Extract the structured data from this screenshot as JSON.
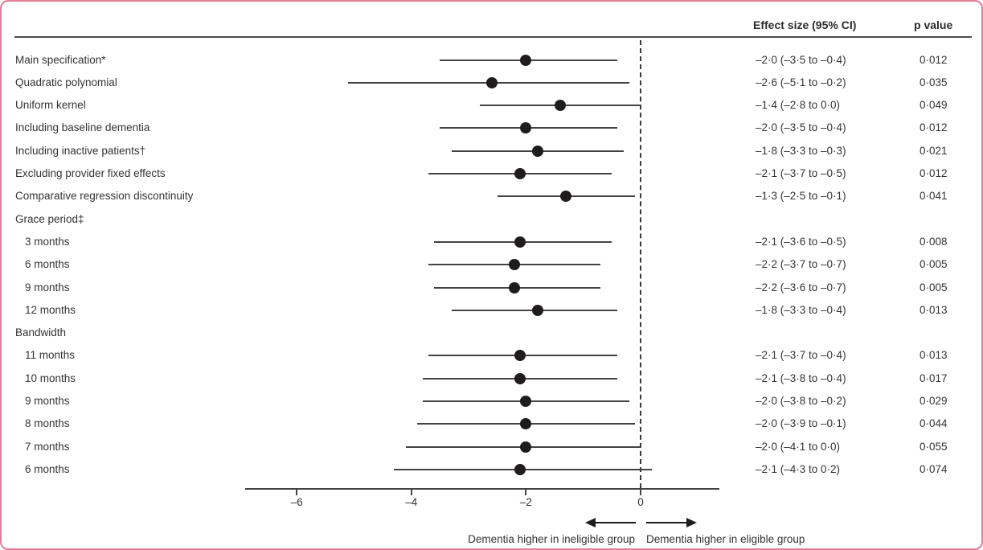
{
  "figure": {
    "border_color": "#e17d96",
    "background": "#ffffff",
    "accent_text_color": "#2d2a2b"
  },
  "columns": {
    "effect_label": "Effect size (95% CI)",
    "p_label": "p value"
  },
  "chart_data": {
    "type": "scatter",
    "subtype": "forest-plot",
    "title": "",
    "xlabel": "",
    "ylabel": "",
    "x_axis": {
      "ticks": [
        -6,
        -4,
        -2,
        0
      ],
      "tick_labels": [
        "–6",
        "–4",
        "–2",
        "0"
      ],
      "range": [
        -6.9,
        1.4
      ],
      "zero_line_dashed": true,
      "grid": false
    },
    "rows": [
      {
        "label": "Main specification*",
        "indent": 0,
        "is_header": false,
        "estimate": -2.0,
        "ci_low": -3.5,
        "ci_high": -0.4,
        "effect_text": "–2·0 (–3·5 to –0·4)",
        "p_text": "0·012"
      },
      {
        "label": "Quadratic polynomial",
        "indent": 0,
        "is_header": false,
        "estimate": -2.6,
        "ci_low": -5.1,
        "ci_high": -0.2,
        "effect_text": "–2·6 (–5·1 to –0·2)",
        "p_text": "0·035"
      },
      {
        "label": "Uniform kernel",
        "indent": 0,
        "is_header": false,
        "estimate": -1.4,
        "ci_low": -2.8,
        "ci_high": 0.0,
        "effect_text": "–1·4 (–2·8 to 0·0)",
        "p_text": "0·049"
      },
      {
        "label": "Including baseline dementia",
        "indent": 0,
        "is_header": false,
        "estimate": -2.0,
        "ci_low": -3.5,
        "ci_high": -0.4,
        "effect_text": "–2·0 (–3·5 to –0·4)",
        "p_text": "0·012"
      },
      {
        "label": "Including inactive patients†",
        "indent": 0,
        "is_header": false,
        "estimate": -1.8,
        "ci_low": -3.3,
        "ci_high": -0.3,
        "effect_text": "–1·8 (–3·3 to –0·3)",
        "p_text": "0·021"
      },
      {
        "label": "Excluding provider fixed effects",
        "indent": 0,
        "is_header": false,
        "estimate": -2.1,
        "ci_low": -3.7,
        "ci_high": -0.5,
        "effect_text": "–2·1 (–3·7 to –0·5)",
        "p_text": "0·012"
      },
      {
        "label": "Comparative regression discontinuity",
        "indent": 0,
        "is_header": false,
        "estimate": -1.3,
        "ci_low": -2.5,
        "ci_high": -0.1,
        "effect_text": "–1·3 (–2·5 to –0·1)",
        "p_text": "0·041"
      },
      {
        "label": "Grace period‡",
        "indent": 0,
        "is_header": true
      },
      {
        "label": "3 months",
        "indent": 1,
        "is_header": false,
        "estimate": -2.1,
        "ci_low": -3.6,
        "ci_high": -0.5,
        "effect_text": "–2·1 (–3·6 to –0·5)",
        "p_text": "0·008"
      },
      {
        "label": "6 months",
        "indent": 1,
        "is_header": false,
        "estimate": -2.2,
        "ci_low": -3.7,
        "ci_high": -0.7,
        "effect_text": "–2·2 (–3·7 to –0·7)",
        "p_text": "0·005"
      },
      {
        "label": "9 months",
        "indent": 1,
        "is_header": false,
        "estimate": -2.2,
        "ci_low": -3.6,
        "ci_high": -0.7,
        "effect_text": "–2·2 (–3·6 to –0·7)",
        "p_text": "0·005"
      },
      {
        "label": "12 months",
        "indent": 1,
        "is_header": false,
        "estimate": -1.8,
        "ci_low": -3.3,
        "ci_high": -0.4,
        "effect_text": "–1·8 (–3·3 to –0·4)",
        "p_text": "0·013"
      },
      {
        "label": "Bandwidth",
        "indent": 0,
        "is_header": true
      },
      {
        "label": "11 months",
        "indent": 1,
        "is_header": false,
        "estimate": -2.1,
        "ci_low": -3.7,
        "ci_high": -0.4,
        "effect_text": "–2·1 (–3·7 to –0·4)",
        "p_text": "0·013"
      },
      {
        "label": "10 months",
        "indent": 1,
        "is_header": false,
        "estimate": -2.1,
        "ci_low": -3.8,
        "ci_high": -0.4,
        "effect_text": "–2·1 (–3·8 to –0·4)",
        "p_text": "0·017"
      },
      {
        "label": "9 months",
        "indent": 1,
        "is_header": false,
        "estimate": -2.0,
        "ci_low": -3.8,
        "ci_high": -0.2,
        "effect_text": "–2·0 (–3·8 to –0·2)",
        "p_text": "0·029"
      },
      {
        "label": "8 months",
        "indent": 1,
        "is_header": false,
        "estimate": -2.0,
        "ci_low": -3.9,
        "ci_high": -0.1,
        "effect_text": "–2·0 (–3·9 to –0·1)",
        "p_text": "0·044"
      },
      {
        "label": "7 months",
        "indent": 1,
        "is_header": false,
        "estimate": -2.0,
        "ci_low": -4.1,
        "ci_high": 0.0,
        "effect_text": "–2·0 (–4·1 to 0·0)",
        "p_text": "0·055"
      },
      {
        "label": "6 months",
        "indent": 1,
        "is_header": false,
        "estimate": -2.1,
        "ci_low": -4.3,
        "ci_high": 0.2,
        "effect_text": "–2·1 (–4·3 to 0·2)",
        "p_text": "0·074"
      }
    ],
    "annotations": {
      "left_caption": "Dementia higher in ineligible group",
      "right_caption": "Dementia higher in eligible group",
      "left_arrow": "arrow-pointing-left",
      "right_arrow": "arrow-pointing-right"
    },
    "legend_position": "none",
    "marker_color": "#1f1c1d",
    "line_color": "#454243"
  }
}
